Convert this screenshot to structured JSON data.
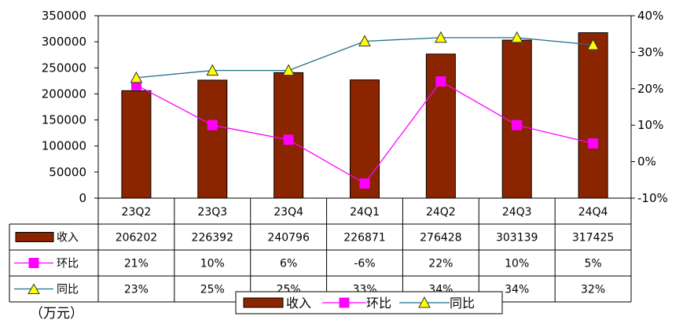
{
  "chart_data": {
    "type": "bar",
    "categories": [
      "23Q2",
      "23Q3",
      "23Q4",
      "24Q1",
      "24Q2",
      "24Q3",
      "24Q4"
    ],
    "series": [
      {
        "name": "收入",
        "type": "bar",
        "axis": "left",
        "color": "#8B2500",
        "values": [
          206202,
          226392,
          240796,
          226871,
          276428,
          303139,
          317425
        ],
        "labels": [
          "206202",
          "226392",
          "240796",
          "226871",
          "276428",
          "303139",
          "317425"
        ]
      },
      {
        "name": "环比",
        "type": "line",
        "axis": "right",
        "color": "#FF00FF",
        "marker": "square",
        "values": [
          21,
          10,
          6,
          -6,
          22,
          10,
          5
        ],
        "labels": [
          "21%",
          "10%",
          "6%",
          "-6%",
          "22%",
          "10%",
          "5%"
        ]
      },
      {
        "name": "同比",
        "type": "line",
        "axis": "right",
        "color": "#1F6F8B",
        "marker": "triangle",
        "marker_color": "#FFFF00",
        "values": [
          23,
          25,
          25,
          33,
          34,
          34,
          32
        ],
        "labels": [
          "23%",
          "25%",
          "25%",
          "33%",
          "34%",
          "34%",
          "32%"
        ]
      }
    ],
    "y_left": {
      "min": 0,
      "max": 350000,
      "ticks": [
        "350000",
        "300000",
        "250000",
        "200000",
        "150000",
        "100000",
        "50000",
        "0"
      ]
    },
    "y_right": {
      "min": -10,
      "max": 40,
      "ticks": [
        "40%",
        "30%",
        "20%",
        "10%",
        "0%",
        "-10%"
      ]
    },
    "data_table": true,
    "legend": "bottom-center",
    "unit_label": "（万元）"
  }
}
